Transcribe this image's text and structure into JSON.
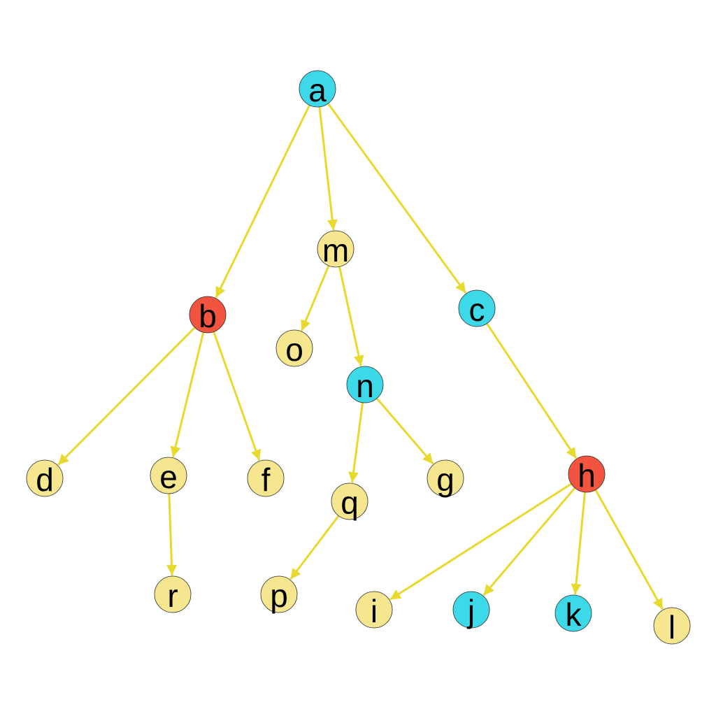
{
  "colors": {
    "edge": "#e8d92e",
    "default": "#f6e68f",
    "cyan": "#3dd9e9",
    "red": "#f25440",
    "background": "#ffffff"
  },
  "nodes": [
    {
      "id": "a",
      "label": "a",
      "color": "cyan"
    },
    {
      "id": "b",
      "label": "b",
      "color": "red"
    },
    {
      "id": "c",
      "label": "c",
      "color": "cyan"
    },
    {
      "id": "m",
      "label": "m",
      "color": "default"
    },
    {
      "id": "o",
      "label": "o",
      "color": "default"
    },
    {
      "id": "n",
      "label": "n",
      "color": "cyan"
    },
    {
      "id": "d",
      "label": "d",
      "color": "default"
    },
    {
      "id": "e",
      "label": "e",
      "color": "default"
    },
    {
      "id": "f",
      "label": "f",
      "color": "default"
    },
    {
      "id": "r",
      "label": "r",
      "color": "default"
    },
    {
      "id": "q",
      "label": "q",
      "color": "default"
    },
    {
      "id": "g",
      "label": "g",
      "color": "default"
    },
    {
      "id": "p",
      "label": "p",
      "color": "default"
    },
    {
      "id": "h",
      "label": "h",
      "color": "red"
    },
    {
      "id": "i",
      "label": "i",
      "color": "default"
    },
    {
      "id": "j",
      "label": "j",
      "color": "cyan"
    },
    {
      "id": "k",
      "label": "k",
      "color": "cyan"
    },
    {
      "id": "l",
      "label": "l",
      "color": "default"
    }
  ],
  "edges": [
    {
      "from": "a",
      "to": "b"
    },
    {
      "from": "a",
      "to": "m"
    },
    {
      "from": "a",
      "to": "c"
    },
    {
      "from": "m",
      "to": "o"
    },
    {
      "from": "m",
      "to": "n"
    },
    {
      "from": "b",
      "to": "d"
    },
    {
      "from": "b",
      "to": "e"
    },
    {
      "from": "b",
      "to": "f"
    },
    {
      "from": "e",
      "to": "r"
    },
    {
      "from": "n",
      "to": "q"
    },
    {
      "from": "n",
      "to": "g"
    },
    {
      "from": "q",
      "to": "p"
    },
    {
      "from": "c",
      "to": "h"
    },
    {
      "from": "h",
      "to": "i"
    },
    {
      "from": "h",
      "to": "j"
    },
    {
      "from": "h",
      "to": "k"
    },
    {
      "from": "h",
      "to": "l"
    }
  ]
}
